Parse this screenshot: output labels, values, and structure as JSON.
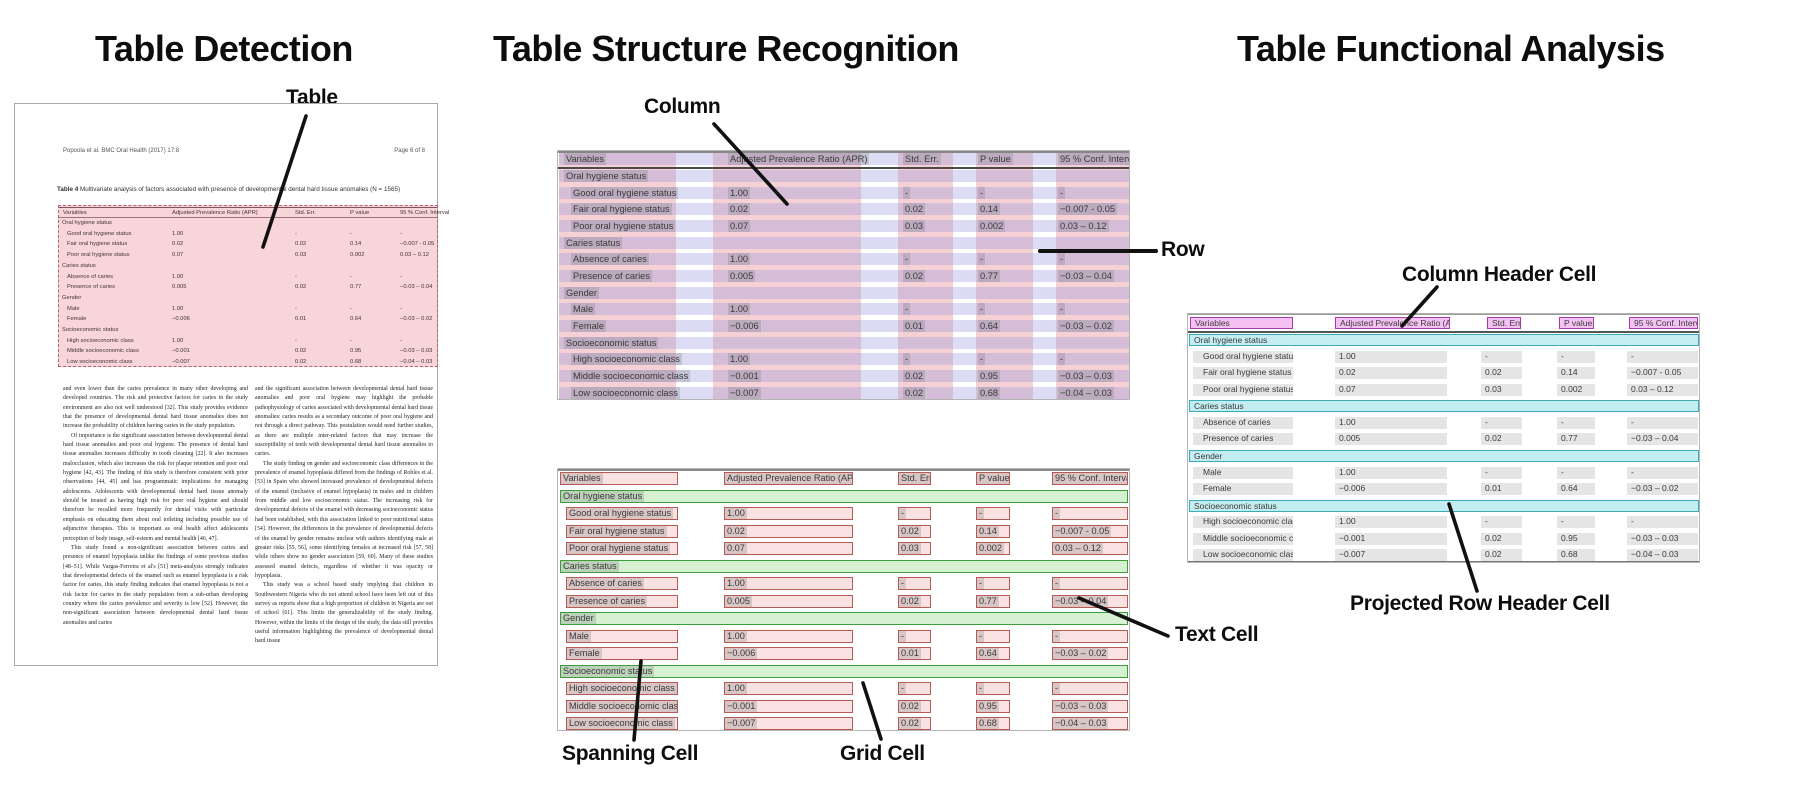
{
  "titles": {
    "panel1": "Table Detection",
    "panel2": "Table Structure Recognition",
    "panel3": "Table Functional Analysis"
  },
  "annotations": {
    "table": "Table",
    "column": "Column",
    "row": "Row",
    "spanning_cell": "Spanning Cell",
    "grid_cell": "Grid Cell",
    "text_cell": "Text Cell",
    "column_header_cell": "Column Header Cell",
    "projected_row_header_cell": "Projected Row Header Cell"
  },
  "document": {
    "header_left": "Popoola et al. BMC Oral Health  (2017) 17:8",
    "header_right": "Page 6 of 8",
    "caption_bold": "Table 4",
    "caption_rest": " Multivariate analysis of factors associated with presence of developmental dental hard tissue anomalies (N = 1565)",
    "body_col1": [
      "and even lower than the caries prevalence in many other developing and developed countries. The risk and protective factors for caries in the study environment are also not well understood [32]. This study provides evidence that the presence of developmental dental hard tissue anomalies does not increase the probability of children having caries in the study population.",
      "Of importance is the significant association between developmental dental hard tissue anomalies and poor oral hygiene. The presence of dental hard tissue anomalies increases difficulty in tooth cleaning [22]. It also increases malocclusion, which also increases the risk for plaque retention and poor oral hygiene [42, 43]. The finding of this study is therefore consistent with prior observations [44, 45] and has programmatic implications for managing adolescents. Adolescents with developmental dental hard tissue anomaly should be treated as having high risk for poor oral hygiene and should therefore be recalled more frequently for dental visits with particular emphasis on educating them about oral toileting including possible use of adjunctive therapies. This is important as oral health affect adolescents perception of body image, self-esteem and mental health [46, 47].",
      "This study found a non-significant association between caries and presence of enamel hypoplasia unlike the findings of some previous studies [48–51]. While Vargas-Ferreira et al's [51] meta-analysis strongly indicates that developmental defects of the enamel such as enamel hypoplasia is a risk factor for caries, this study finding indicates that enamel hypoplasia is not a risk factor for caries in the study population from a sub-urban developing country where the caries prevalence and severity is low [52]. However, the non-significant association between developmental dental hard tissue anomalies and caries"
    ],
    "body_col2": [
      "and the significant association between developmental dental hard tissue anomalies and poor oral hygiene may highlight the probable pathophysiology of caries associated with developmental dental hard tissue anomalies: caries results as a secondary outcome of poor oral hygiene and not through a direct pathway. This postulation would need further studies, as there are multiple inter-related factors that may increase the susceptibility of teeth with developmental dental hard tissue anomalies to caries.",
      "The study finding on gender and socioeconomic class differences in the prevalence of enamel hypoplasia differed from the findings of Robles et al. [53] in Spain who showed increased prevalence of developmental defects of the enamel (inclusive of enamel hypoplasia) in males and in children from middle and low socioeconomic status. The increasing risk for developmental defects of the enamel with decreasing socioeconomic status had been established, with this association linked to poor nutritional status [54]. However, the differences in the prevalence of developmental defects of the enamel by gender remains unclear with authors identifying male at greater risks [55, 56], some identifying females at increased risk [57, 58] while others show no gender association [59, 60]. Many of these studies assessed enamel defects, regardless of whether it was opacity or hypoplasia.",
      "This study was a school based study implying that children in Southwestern Nigeria who do not attend school have been left out of this survey as reports show that a high proportion of children in Nigeria are out of school [61]. This limits the generalizability of the study finding. However, within the limits of the design of the study, the data still provides useful information highlighting the prevalence of developmental dental hard tissue"
    ]
  },
  "table": {
    "columns": [
      "Variables",
      "Adjusted Prevalence Ratio (APR)",
      "Std. Err.",
      "P value",
      "95 % Conf. Interval"
    ],
    "rows": [
      {
        "type": "span",
        "label": "Oral hygiene status"
      },
      {
        "type": "data",
        "label": "Good oral hygiene status",
        "values": [
          "1.00",
          "-",
          "-",
          "-"
        ]
      },
      {
        "type": "data",
        "label": "Fair oral hygiene status",
        "values": [
          "0.02",
          "0.02",
          "0.14",
          "−0.007 - 0.05"
        ]
      },
      {
        "type": "data",
        "label": "Poor oral hygiene status",
        "values": [
          "0.07",
          "0.03",
          "0.002",
          "0.03 – 0.12"
        ]
      },
      {
        "type": "span",
        "label": "Caries status"
      },
      {
        "type": "data",
        "label": "Absence of caries",
        "values": [
          "1.00",
          "-",
          "-",
          "-"
        ]
      },
      {
        "type": "data",
        "label": "Presence of caries",
        "values": [
          "0.005",
          "0.02",
          "0.77",
          "−0.03 – 0.04"
        ]
      },
      {
        "type": "span",
        "label": "Gender"
      },
      {
        "type": "data",
        "label": "Male",
        "values": [
          "1.00",
          "-",
          "-",
          "-"
        ]
      },
      {
        "type": "data",
        "label": "Female",
        "values": [
          "−0.006",
          "0.01",
          "0.64",
          "−0.03 – 0.02"
        ]
      },
      {
        "type": "span",
        "label": "Socioeconomic status"
      },
      {
        "type": "data",
        "label": "High socioeconomic class",
        "values": [
          "1.00",
          "-",
          "-",
          "-"
        ]
      },
      {
        "type": "data",
        "label": "Middle socioeconomic class",
        "values": [
          "−0.001",
          "0.02",
          "0.95",
          "−0.03 – 0.03"
        ]
      },
      {
        "type": "data",
        "label": "Low socioeconomic class",
        "values": [
          "−0.007",
          "0.02",
          "0.68",
          "−0.04 – 0.03"
        ]
      }
    ]
  },
  "colors": {
    "detection_fill": "rgba(233,128,138,0.33)",
    "detection_border": "#b4646e",
    "column_band": "rgba(222,102,120,0.30)",
    "row_band": "rgba(138,138,218,0.30)",
    "text_box": "rgba(115,115,115,0.25)",
    "grid_cell_fill": "rgba(238,164,164,0.32)",
    "grid_cell_border": "#b65a54",
    "span_cell_fill": "rgba(150,219,140,0.40)",
    "span_cell_border": "#3f9c3a",
    "header_cell_fill": "rgba(236,132,232,0.50)",
    "header_cell_border": "#a43fa8",
    "proj_row_fill": "rgba(122,214,224,0.45)",
    "proj_row_border": "#3aacb8",
    "value_box": "#e5e5e5",
    "pointer_line": "#111111"
  }
}
